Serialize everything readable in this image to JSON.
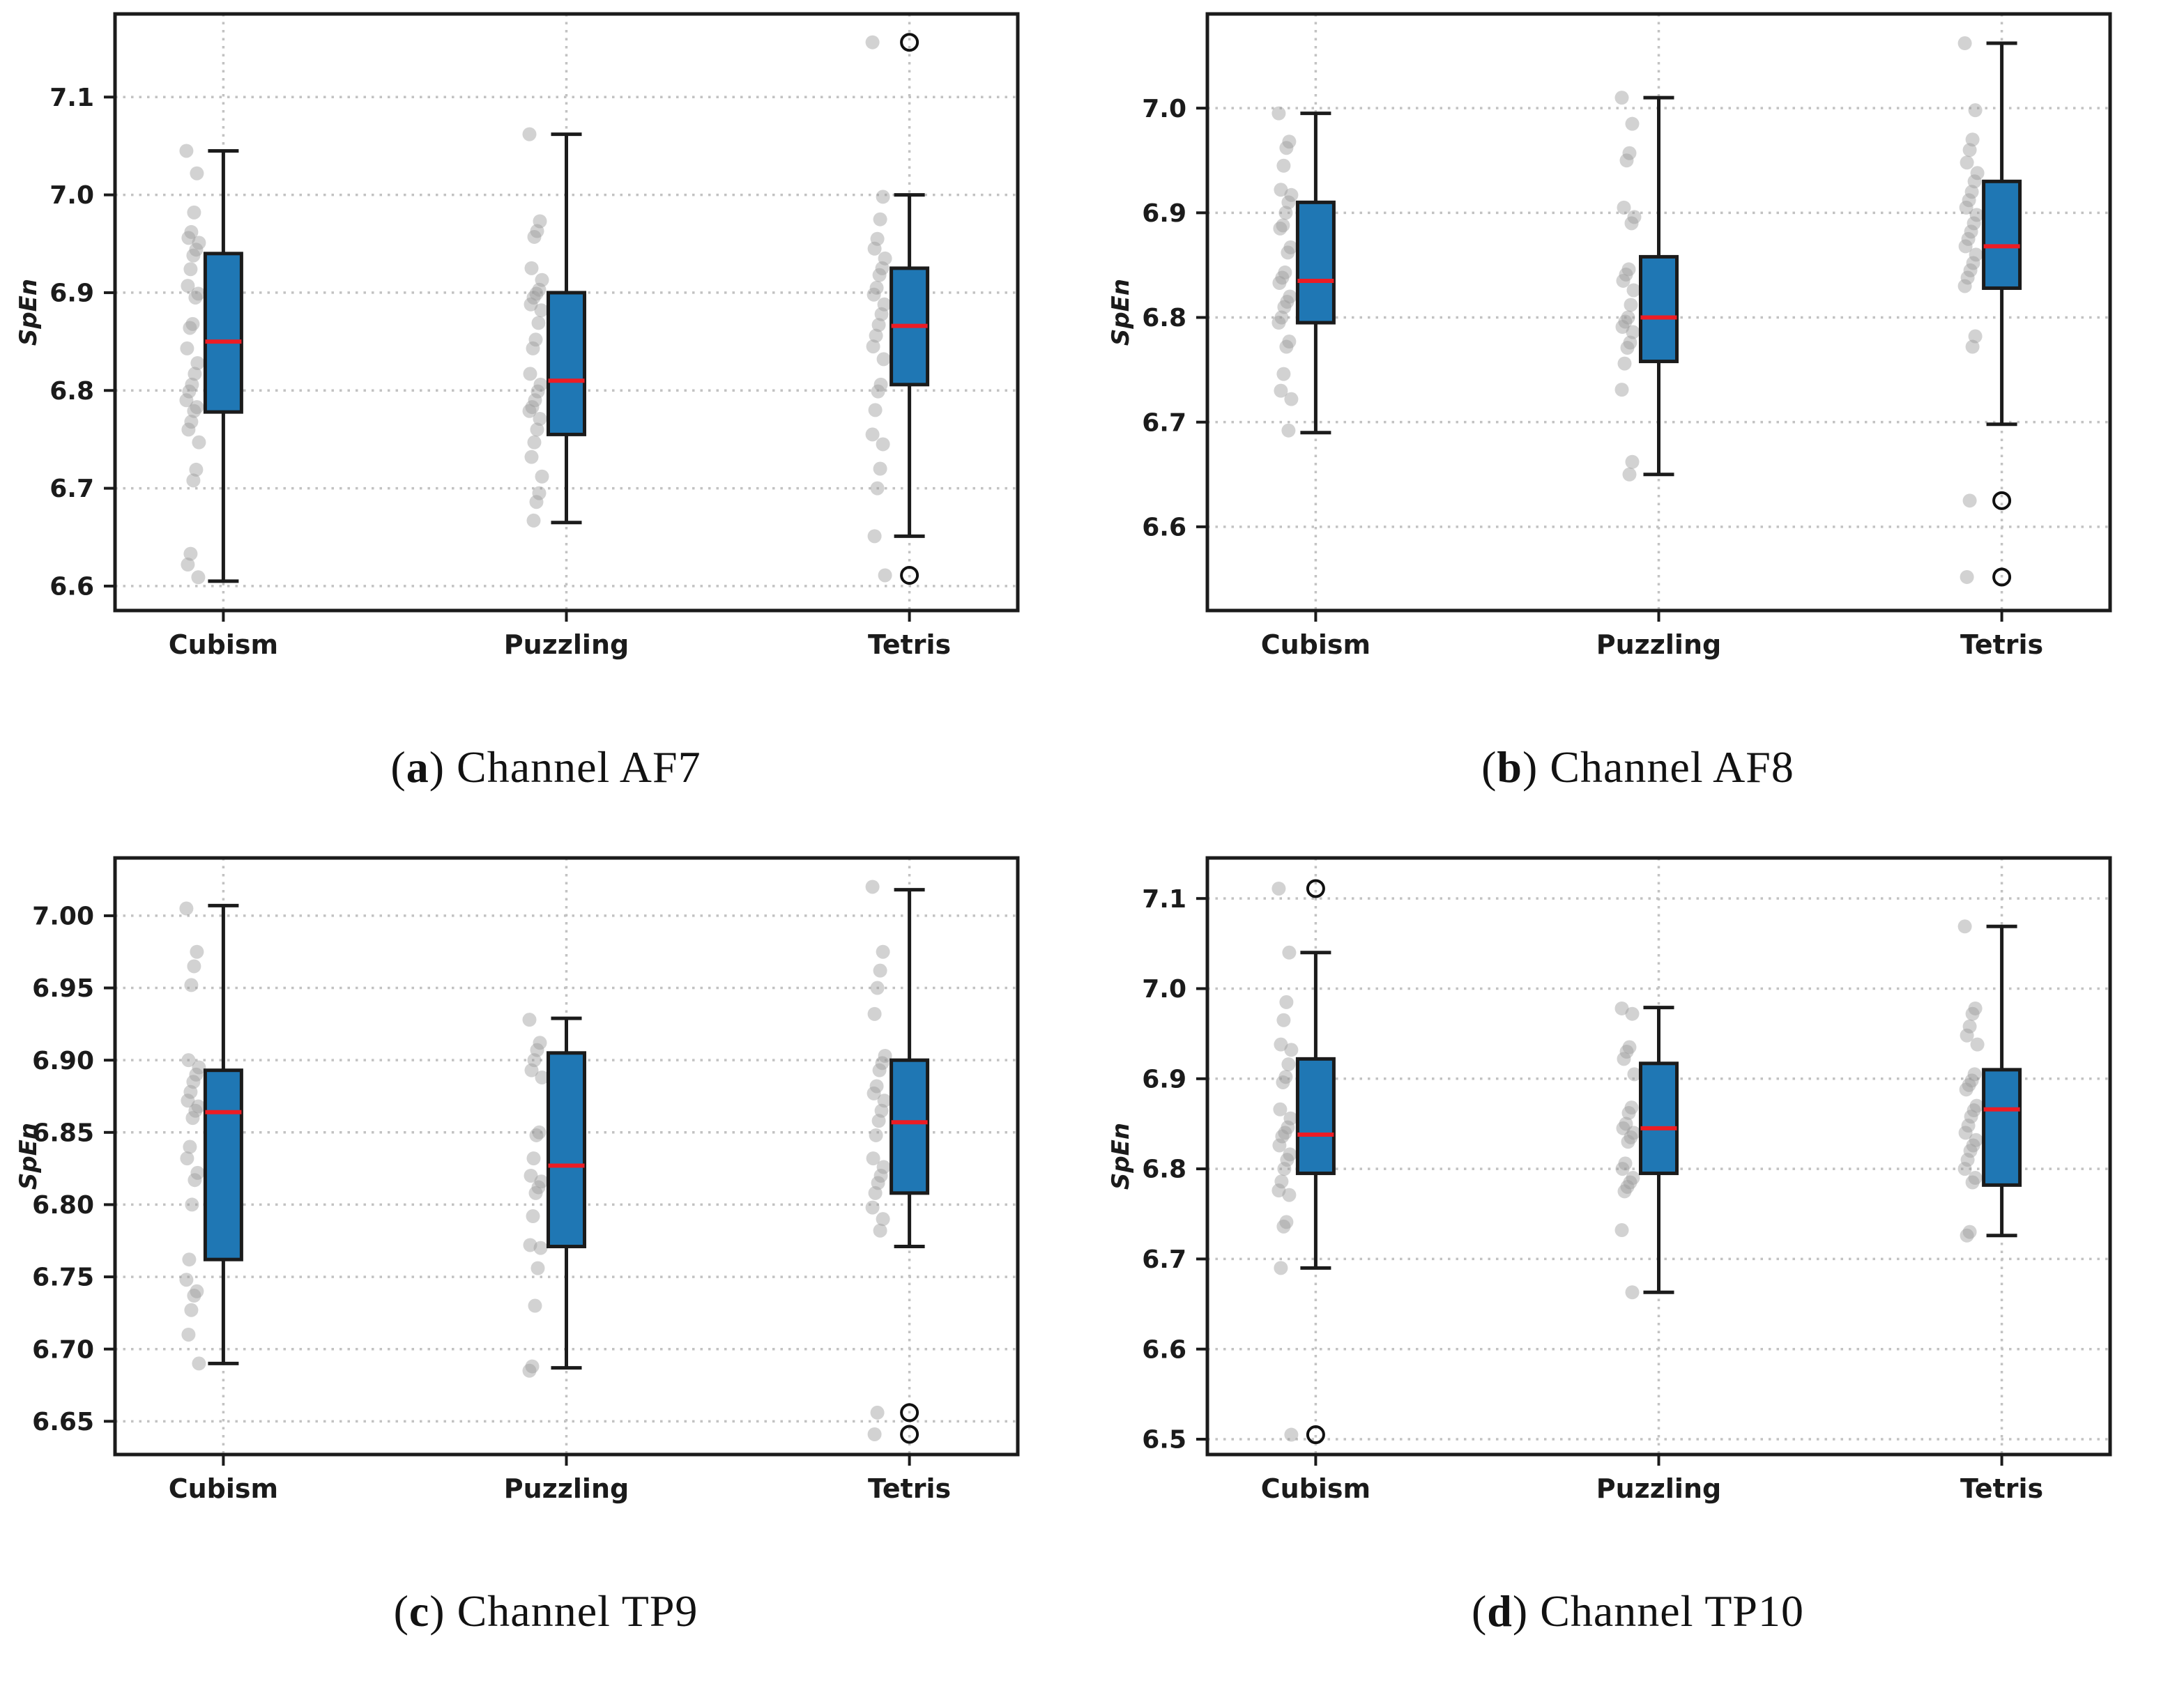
{
  "figure": {
    "ylabel": "SpEn",
    "colors": {
      "box_fill": "#1f77b4",
      "median": "#ed1c24",
      "edge": "#1b1b1b",
      "grid": "#c2c2c2",
      "scatter": "#9c9c9c",
      "tick_text": "#1b1b1b"
    }
  },
  "chart_data": [
    {
      "id": "a",
      "type": "box",
      "caption": {
        "open": "(",
        "letter": "a",
        "rest": ") Channel AF7"
      },
      "ylabel": "SpEn",
      "categories": [
        "Cubism",
        "Puzzling",
        "Tetris"
      ],
      "ylim": [
        6.575,
        7.185
      ],
      "yticks": [
        6.6,
        6.7,
        6.8,
        6.9,
        7.0,
        7.1
      ],
      "ytick_labels": [
        "6.6",
        "6.7",
        "6.8",
        "6.9",
        "7.0",
        "7.1"
      ],
      "series": [
        {
          "name": "Cubism",
          "whislo": 6.605,
          "q1": 6.778,
          "med": 6.85,
          "q3": 6.94,
          "whishi": 7.045,
          "outliers": [],
          "points": [
            7.045,
            7.022,
            6.982,
            6.962,
            6.956,
            6.951,
            6.944,
            6.938,
            6.924,
            6.907,
            6.899,
            6.895,
            6.868,
            6.864,
            6.843,
            6.828,
            6.817,
            6.806,
            6.799,
            6.79,
            6.783,
            6.779,
            6.768,
            6.76,
            6.747,
            6.719,
            6.708,
            6.633,
            6.622,
            6.609
          ]
        },
        {
          "name": "Puzzling",
          "whislo": 6.665,
          "q1": 6.755,
          "med": 6.81,
          "q3": 6.9,
          "whishi": 7.062,
          "outliers": [],
          "points": [
            7.062,
            6.973,
            6.963,
            6.957,
            6.925,
            6.913,
            6.903,
            6.899,
            6.895,
            6.888,
            6.882,
            6.869,
            6.852,
            6.843,
            6.817,
            6.806,
            6.799,
            6.79,
            6.783,
            6.779,
            6.771,
            6.76,
            6.747,
            6.732,
            6.712,
            6.695,
            6.686,
            6.667
          ]
        },
        {
          "name": "Tetris",
          "whislo": 6.651,
          "q1": 6.806,
          "med": 6.866,
          "q3": 6.925,
          "whishi": 7.0,
          "outliers": [
            7.156,
            6.611
          ],
          "points": [
            7.156,
            6.998,
            6.975,
            6.955,
            6.945,
            6.935,
            6.925,
            6.918,
            6.905,
            6.898,
            6.888,
            6.878,
            6.867,
            6.856,
            6.845,
            6.832,
            6.806,
            6.799,
            6.78,
            6.755,
            6.745,
            6.72,
            6.7,
            6.651,
            6.611
          ]
        }
      ]
    },
    {
      "id": "b",
      "type": "box",
      "caption": {
        "open": "(",
        "letter": "b",
        "rest": ") Channel AF8"
      },
      "ylabel": "SpEn",
      "categories": [
        "Cubism",
        "Puzzling",
        "Tetris"
      ],
      "ylim": [
        6.52,
        7.09
      ],
      "yticks": [
        6.6,
        6.7,
        6.8,
        6.9,
        7.0
      ],
      "ytick_labels": [
        "6.6",
        "6.7",
        "6.8",
        "6.9",
        "7.0"
      ],
      "series": [
        {
          "name": "Cubism",
          "whislo": 6.69,
          "q1": 6.795,
          "med": 6.835,
          "q3": 6.91,
          "whishi": 6.995,
          "outliers": [],
          "points": [
            6.995,
            6.968,
            6.962,
            6.945,
            6.922,
            6.917,
            6.91,
            6.9,
            6.888,
            6.885,
            6.867,
            6.862,
            6.843,
            6.838,
            6.833,
            6.82,
            6.815,
            6.81,
            6.8,
            6.795,
            6.777,
            6.772,
            6.746,
            6.73,
            6.722,
            6.692
          ]
        },
        {
          "name": "Puzzling",
          "whislo": 6.65,
          "q1": 6.758,
          "med": 6.8,
          "q3": 6.858,
          "whishi": 7.01,
          "outliers": [],
          "points": [
            7.01,
            6.985,
            6.957,
            6.95,
            6.905,
            6.896,
            6.89,
            6.846,
            6.841,
            6.835,
            6.826,
            6.812,
            6.8,
            6.796,
            6.791,
            6.786,
            6.776,
            6.771,
            6.756,
            6.731,
            6.662,
            6.65
          ]
        },
        {
          "name": "Tetris",
          "whislo": 6.698,
          "q1": 6.828,
          "med": 6.868,
          "q3": 6.93,
          "whishi": 7.062,
          "outliers": [
            6.625,
            6.552
          ],
          "points": [
            7.062,
            6.998,
            6.97,
            6.96,
            6.948,
            6.938,
            6.93,
            6.92,
            6.912,
            6.905,
            6.898,
            6.89,
            6.882,
            6.875,
            6.868,
            6.86,
            6.852,
            6.845,
            6.838,
            6.83,
            6.782,
            6.772,
            6.625,
            6.552
          ]
        }
      ]
    },
    {
      "id": "c",
      "type": "box",
      "caption": {
        "open": "(",
        "letter": "c",
        "rest": ") Channel TP9"
      },
      "ylabel": "SpEn",
      "categories": [
        "Cubism",
        "Puzzling",
        "Tetris"
      ],
      "ylim": [
        6.627,
        7.04
      ],
      "yticks": [
        6.65,
        6.7,
        6.75,
        6.8,
        6.85,
        6.9,
        6.95,
        7.0
      ],
      "ytick_labels": [
        "6.65",
        "6.70",
        "6.75",
        "6.80",
        "6.85",
        "6.90",
        "6.95",
        "7.00"
      ],
      "series": [
        {
          "name": "Cubism",
          "whislo": 6.69,
          "q1": 6.762,
          "med": 6.864,
          "q3": 6.893,
          "whishi": 7.007,
          "outliers": [],
          "points": [
            7.005,
            6.975,
            6.965,
            6.952,
            6.9,
            6.895,
            6.89,
            6.885,
            6.878,
            6.872,
            6.868,
            6.865,
            6.86,
            6.84,
            6.832,
            6.822,
            6.817,
            6.8,
            6.762,
            6.748,
            6.74,
            6.737,
            6.727,
            6.71,
            6.69
          ]
        },
        {
          "name": "Puzzling",
          "whislo": 6.687,
          "q1": 6.771,
          "med": 6.827,
          "q3": 6.905,
          "whishi": 6.929,
          "outliers": [],
          "points": [
            6.928,
            6.912,
            6.907,
            6.9,
            6.893,
            6.888,
            6.85,
            6.848,
            6.832,
            6.82,
            6.816,
            6.812,
            6.808,
            6.792,
            6.772,
            6.77,
            6.756,
            6.73,
            6.688,
            6.685
          ]
        },
        {
          "name": "Tetris",
          "whislo": 6.771,
          "q1": 6.808,
          "med": 6.857,
          "q3": 6.9,
          "whishi": 7.018,
          "outliers": [
            6.656,
            6.641
          ],
          "points": [
            7.02,
            6.975,
            6.962,
            6.95,
            6.932,
            6.903,
            6.898,
            6.893,
            6.882,
            6.877,
            6.872,
            6.865,
            6.858,
            6.848,
            6.832,
            6.826,
            6.82,
            6.815,
            6.808,
            6.798,
            6.79,
            6.782,
            6.656,
            6.641
          ]
        }
      ]
    },
    {
      "id": "d",
      "type": "box",
      "caption": {
        "open": "(",
        "letter": "d",
        "rest": ") Channel TP10"
      },
      "ylabel": "SpEn",
      "categories": [
        "Cubism",
        "Puzzling",
        "Tetris"
      ],
      "ylim": [
        6.483,
        7.145
      ],
      "yticks": [
        6.5,
        6.6,
        6.7,
        6.8,
        6.9,
        7.0,
        7.1
      ],
      "ytick_labels": [
        "6.5",
        "6.6",
        "6.7",
        "6.8",
        "6.9",
        "7.0",
        "7.1"
      ],
      "series": [
        {
          "name": "Cubism",
          "whislo": 6.69,
          "q1": 6.795,
          "med": 6.838,
          "q3": 6.922,
          "whishi": 7.04,
          "outliers": [
            7.111,
            6.505
          ],
          "points": [
            7.111,
            7.04,
            6.985,
            6.965,
            6.938,
            6.932,
            6.916,
            6.902,
            6.896,
            6.866,
            6.856,
            6.846,
            6.84,
            6.836,
            6.826,
            6.816,
            6.81,
            6.8,
            6.786,
            6.776,
            6.771,
            6.741,
            6.736,
            6.69,
            6.505
          ]
        },
        {
          "name": "Puzzling",
          "whislo": 6.663,
          "q1": 6.795,
          "med": 6.845,
          "q3": 6.917,
          "whishi": 6.979,
          "outliers": [],
          "points": [
            6.978,
            6.972,
            6.935,
            6.93,
            6.922,
            6.905,
            6.868,
            6.862,
            6.85,
            6.845,
            6.84,
            6.835,
            6.83,
            6.806,
            6.8,
            6.79,
            6.785,
            6.78,
            6.775,
            6.732,
            6.663
          ]
        },
        {
          "name": "Tetris",
          "whislo": 6.726,
          "q1": 6.782,
          "med": 6.866,
          "q3": 6.91,
          "whishi": 7.069,
          "outliers": [],
          "points": [
            7.069,
            6.978,
            6.972,
            6.958,
            6.948,
            6.938,
            6.905,
            6.898,
            6.893,
            6.888,
            6.87,
            6.865,
            6.858,
            6.848,
            6.84,
            6.832,
            6.826,
            6.82,
            6.81,
            6.8,
            6.79,
            6.785,
            6.73,
            6.726
          ]
        }
      ]
    }
  ]
}
